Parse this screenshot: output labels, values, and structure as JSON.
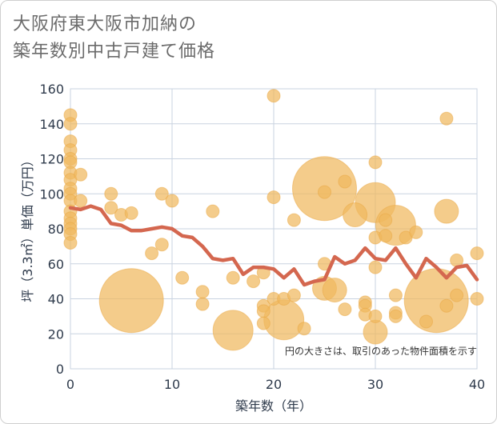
{
  "header": {
    "title_line1": "大阪府東大阪市加納の",
    "title_line2": "築年数別中古戸建て価格"
  },
  "chart_data": {
    "type": "scatter",
    "xlabel": "築年数（年）",
    "ylabel": "坪（3.3㎡）単価（万円）",
    "xlim": [
      0,
      40
    ],
    "ylim": [
      0,
      160
    ],
    "x_ticks": [
      0,
      10,
      20,
      30,
      40
    ],
    "y_ticks": [
      0,
      20,
      40,
      60,
      80,
      100,
      120,
      140,
      160
    ],
    "grid": true,
    "note": "円の大きさは、取引のあった物件面積を示す",
    "colors": {
      "bubble": "#f0b95e",
      "line": "#d4674f",
      "grid": "#c9d3e0"
    },
    "series": [
      {
        "type": "bubble",
        "points": [
          [
            0,
            145,
            1
          ],
          [
            0,
            140,
            1
          ],
          [
            0,
            130,
            1
          ],
          [
            0,
            125,
            1
          ],
          [
            0,
            120,
            1
          ],
          [
            0,
            118,
            1
          ],
          [
            0,
            112,
            1
          ],
          [
            0,
            108,
            1
          ],
          [
            0,
            103,
            1
          ],
          [
            0,
            100,
            1
          ],
          [
            0,
            96,
            1
          ],
          [
            0,
            90,
            1
          ],
          [
            0,
            86,
            1
          ],
          [
            0,
            83,
            1
          ],
          [
            0,
            80,
            1
          ],
          [
            0,
            77,
            1
          ],
          [
            0,
            72,
            1
          ],
          [
            1,
            111,
            1
          ],
          [
            1,
            96,
            1
          ],
          [
            4,
            100,
            1
          ],
          [
            4,
            92,
            1
          ],
          [
            5,
            88,
            1
          ],
          [
            6,
            89,
            1
          ],
          [
            6,
            39,
            4
          ],
          [
            8,
            66,
            1
          ],
          [
            9,
            100,
            1
          ],
          [
            9,
            71,
            1
          ],
          [
            10,
            96,
            1
          ],
          [
            11,
            52,
            1
          ],
          [
            13,
            44,
            1
          ],
          [
            13,
            37,
            1
          ],
          [
            14,
            90,
            1
          ],
          [
            16,
            52,
            1
          ],
          [
            16,
            22,
            3
          ],
          [
            18,
            50,
            1
          ],
          [
            19,
            55,
            1
          ],
          [
            19,
            36,
            1
          ],
          [
            19,
            33,
            1
          ],
          [
            19,
            26,
            1
          ],
          [
            20,
            156,
            1
          ],
          [
            20,
            98,
            1
          ],
          [
            20,
            40,
            1
          ],
          [
            21,
            40,
            1
          ],
          [
            21,
            28,
            3
          ],
          [
            22,
            85,
            1
          ],
          [
            22,
            42,
            1
          ],
          [
            23,
            23,
            1
          ],
          [
            25,
            103,
            4
          ],
          [
            25,
            101,
            1
          ],
          [
            25,
            60,
            1
          ],
          [
            25,
            46,
            2
          ],
          [
            26,
            45,
            2
          ],
          [
            27,
            107,
            1
          ],
          [
            27,
            34,
            1
          ],
          [
            28,
            88,
            2
          ],
          [
            29,
            38,
            1
          ],
          [
            29,
            36,
            1
          ],
          [
            29,
            31,
            1
          ],
          [
            30,
            95,
            3
          ],
          [
            30,
            118,
            1
          ],
          [
            30,
            75,
            1
          ],
          [
            30,
            58,
            1
          ],
          [
            30,
            30,
            1
          ],
          [
            30,
            21,
            2
          ],
          [
            31,
            85,
            1
          ],
          [
            31,
            76,
            1
          ],
          [
            32,
            82,
            3
          ],
          [
            32,
            42,
            1
          ],
          [
            32,
            32,
            1
          ],
          [
            32,
            30,
            1
          ],
          [
            33,
            75,
            1
          ],
          [
            34,
            78,
            1
          ],
          [
            35,
            27,
            1
          ],
          [
            36,
            39,
            4
          ],
          [
            37,
            143,
            1
          ],
          [
            37,
            90,
            2
          ],
          [
            37,
            36,
            1
          ],
          [
            38,
            62,
            1
          ],
          [
            38,
            42,
            1
          ],
          [
            40,
            66,
            1
          ],
          [
            40,
            40,
            1
          ]
        ]
      },
      {
        "type": "line",
        "points": [
          [
            0,
            92
          ],
          [
            1,
            91
          ],
          [
            2,
            93
          ],
          [
            3,
            91
          ],
          [
            4,
            83
          ],
          [
            5,
            82
          ],
          [
            6,
            79
          ],
          [
            7,
            79
          ],
          [
            8,
            80
          ],
          [
            9,
            81
          ],
          [
            10,
            80
          ],
          [
            11,
            76
          ],
          [
            12,
            75
          ],
          [
            13,
            70
          ],
          [
            14,
            63
          ],
          [
            15,
            62
          ],
          [
            16,
            63
          ],
          [
            17,
            54
          ],
          [
            18,
            58
          ],
          [
            19,
            58
          ],
          [
            20,
            57
          ],
          [
            21,
            52
          ],
          [
            22,
            57
          ],
          [
            23,
            48
          ],
          [
            24,
            50
          ],
          [
            25,
            51
          ],
          [
            26,
            64
          ],
          [
            27,
            60
          ],
          [
            28,
            62
          ],
          [
            29,
            69
          ],
          [
            30,
            63
          ],
          [
            31,
            62
          ],
          [
            32,
            69
          ],
          [
            33,
            60
          ],
          [
            34,
            52
          ],
          [
            35,
            63
          ],
          [
            36,
            58
          ],
          [
            37,
            52
          ],
          [
            38,
            58
          ],
          [
            39,
            59
          ],
          [
            40,
            51
          ]
        ]
      }
    ]
  }
}
